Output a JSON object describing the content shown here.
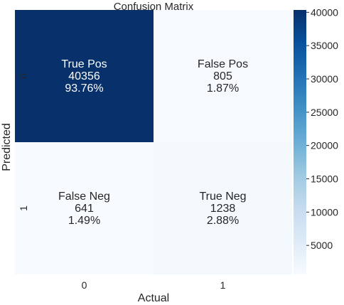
{
  "chart_data": {
    "type": "heatmap",
    "title": "Confusion Matrix",
    "xlabel": "Actual",
    "ylabel": "Predicted",
    "x_tick_labels": [
      "0",
      "1"
    ],
    "y_tick_labels": [
      "0",
      "1"
    ],
    "values": [
      [
        40356,
        805
      ],
      [
        641,
        1238
      ]
    ],
    "cell_labels": [
      [
        [
          "True Pos",
          "40356",
          "93.76%"
        ],
        [
          "False Pos",
          "805",
          "1.87%"
        ]
      ],
      [
        [
          "False Neg",
          "641",
          "1.49%"
        ],
        [
          "True Neg",
          "1238",
          "2.88%"
        ]
      ]
    ],
    "colormap": "Blues",
    "colorbar": {
      "range": [
        641,
        40356
      ],
      "ticks": [
        "5000",
        "10000",
        "15000",
        "20000",
        "25000",
        "30000",
        "35000",
        "40000"
      ],
      "colors": [
        "#f7fbff",
        "#deebf7",
        "#c6dbef",
        "#9ecae1",
        "#6baed6",
        "#4292c6",
        "#2171b5",
        "#08519c",
        "#08306b"
      ]
    }
  }
}
